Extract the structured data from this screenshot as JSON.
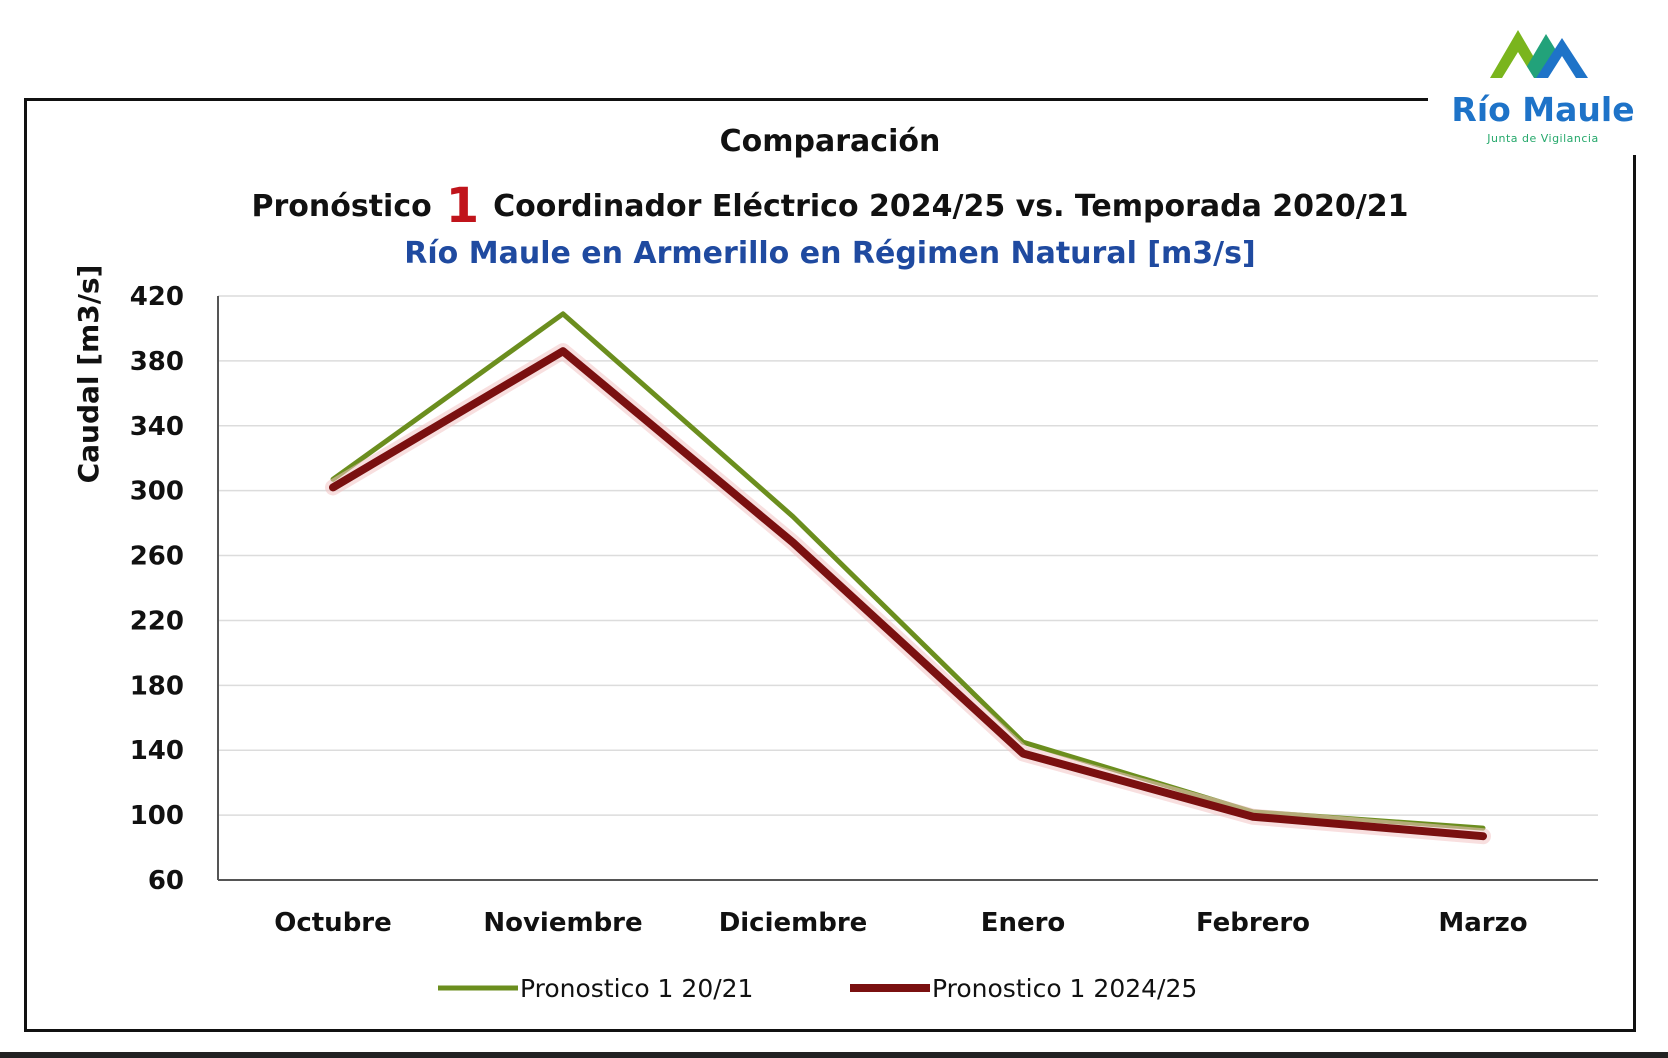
{
  "logo": {
    "title": "Río Maule",
    "subtitle": "Junta de Vigilancia",
    "colors": {
      "green": "#7ab51d",
      "blue": "#1e73c8",
      "teal": "#22a27a"
    }
  },
  "chart_data": {
    "type": "line",
    "title": "Comparación",
    "subtitle_prefix": "Pronóstico",
    "subtitle_number": "1",
    "subtitle_suffix": "Coordinador Eléctrico 2024/25 vs. Temporada 2020/21",
    "subtitle2": "Río Maule en Armerillo en Régimen Natural [m3/s]",
    "xlabel": "",
    "ylabel": "Caudal [m3/s]",
    "ylim": [
      60,
      420
    ],
    "yticks": [
      420,
      380,
      340,
      300,
      260,
      220,
      180,
      140,
      100,
      60
    ],
    "grid": true,
    "legend_position": "bottom",
    "categories": [
      "Octubre",
      "Noviembre",
      "Diciembre",
      "Enero",
      "Febrero",
      "Marzo"
    ],
    "series": [
      {
        "name": "Pronostico 1 20/21",
        "color": "#6b8e1e",
        "values": [
          307,
          409,
          284,
          145,
          102,
          92
        ]
      },
      {
        "name": "Pronostico 1 2024/25",
        "color": "#7a1010",
        "values": [
          302,
          386,
          268,
          138,
          99,
          87
        ]
      }
    ]
  }
}
